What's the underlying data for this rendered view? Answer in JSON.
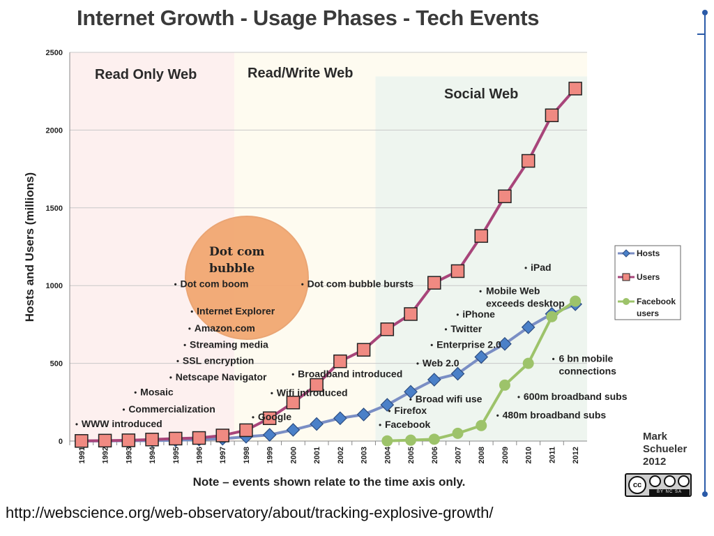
{
  "title": "Internet Growth - Usage Phases - Tech Events",
  "source_url": "http://webscience.org/web-observatory/about/tracking-explosive-growth/",
  "credit": {
    "line1": "Mark",
    "line2": "Schueler",
    "line3": "2012"
  },
  "license_text": "BY  NC  SA",
  "license_icon": "cc",
  "colors": {
    "hosts": "#7a8ec4",
    "hosts_marker": "#4a80c8",
    "users": "#a8457a",
    "users_marker": "#f08a82",
    "facebook": "#9dc36a",
    "read_only_bg": "#fdf0ef",
    "read_write_bg": "#fefbf0",
    "social_bg": "#eef5ef",
    "bubble": "#f2a872",
    "timeline": "#2a5aa8"
  },
  "chart_data": {
    "type": "line",
    "x": [
      1991,
      1992,
      1993,
      1994,
      1995,
      1996,
      1997,
      1998,
      1999,
      2000,
      2001,
      2002,
      2003,
      2004,
      2005,
      2006,
      2007,
      2008,
      2009,
      2010,
      2011,
      2012
    ],
    "x_tick_labels": [
      "1991",
      "1992",
      "1993",
      "1994",
      "1995",
      "1996",
      "1997",
      "1998",
      "1999",
      "2000",
      "2001",
      "2002",
      "2003",
      "2004",
      "2005",
      "2006",
      "2007",
      "2008",
      "2009",
      "2010",
      "2011",
      "2012"
    ],
    "ylabel": "Hosts and Users (millions)",
    "xlabel": "Note – events shown relate to the time axis only.",
    "ylim": [
      0,
      2500
    ],
    "y_ticks": [
      0,
      500,
      1000,
      1500,
      2000,
      2500
    ],
    "y_tick_labels": [
      "0",
      "500",
      "1000",
      "1500",
      "2000",
      "2500"
    ],
    "grid": true,
    "legend_position": "right",
    "series": [
      {
        "name": "Hosts",
        "marker": "diamond",
        "x": [
          1991,
          1992,
          1993,
          1994,
          1995,
          1996,
          1997,
          1998,
          1999,
          2000,
          2001,
          2002,
          2003,
          2004,
          2005,
          2006,
          2007,
          2008,
          2009,
          2010,
          2011,
          2012
        ],
        "values": [
          0.4,
          1,
          2,
          3,
          5,
          10,
          15,
          28,
          40,
          72,
          110,
          147,
          171,
          233,
          317,
          395,
          433,
          541,
          625,
          732,
          818,
          880
        ]
      },
      {
        "name": "Users",
        "marker": "square",
        "x": [
          1991,
          1992,
          1993,
          1994,
          1995,
          1996,
          1997,
          1998,
          1999,
          2000,
          2001,
          2002,
          2003,
          2004,
          2005,
          2006,
          2007,
          2008,
          2009,
          2010,
          2011,
          2012
        ],
        "values": [
          1,
          3,
          5,
          10,
          16,
          20,
          36,
          70,
          147,
          248,
          361,
          513,
          587,
          719,
          817,
          1018,
          1093,
          1319,
          1574,
          1802,
          2095,
          2267
        ]
      },
      {
        "name": "Facebook users",
        "marker": "circle",
        "x": [
          2004,
          2005,
          2006,
          2007,
          2008,
          2009,
          2010,
          2011,
          2012
        ],
        "values": [
          1,
          6,
          12,
          50,
          100,
          360,
          500,
          800,
          900
        ]
      }
    ],
    "legend": [
      "Hosts",
      "Users",
      "Facebook users"
    ],
    "phases": [
      {
        "label": "Read Only Web",
        "from": 1990.5,
        "to": 1997.5
      },
      {
        "label": "Read/Write Web",
        "from": 1997.5,
        "to": 2012.5
      },
      {
        "label": "Social Web",
        "from": 2003.5,
        "to": 2012.5
      }
    ],
    "bubble_label_line1": "Dot com",
    "bubble_label_line2": "bubble",
    "annotations": [
      {
        "text": "WWW introduced",
        "x": 1991,
        "y": 90
      },
      {
        "text": "Commercialization",
        "x": 1993,
        "y": 185
      },
      {
        "text": "Mosaic",
        "x": 1993.5,
        "y": 295
      },
      {
        "text": "Netscape Navigator",
        "x": 1995,
        "y": 390
      },
      {
        "text": "SSL encryption",
        "x": 1995.3,
        "y": 495
      },
      {
        "text": "Streaming media",
        "x": 1995.6,
        "y": 600
      },
      {
        "text": "Amazon.com",
        "x": 1995.8,
        "y": 705
      },
      {
        "text": "Internet Explorer",
        "x": 1995.9,
        "y": 815
      },
      {
        "text": "Dot com boom",
        "x": 1995.2,
        "y": 990
      },
      {
        "text": "Google",
        "x": 1998.5,
        "y": 135
      },
      {
        "text": "Wifi introduced",
        "x": 1999.3,
        "y": 290
      },
      {
        "text": "Broadband introduced",
        "x": 2000.2,
        "y": 410
      },
      {
        "text": "Dot com bubble bursts",
        "x": 2000.6,
        "y": 990
      },
      {
        "text": "Facebook",
        "x": 2003.9,
        "y": 85
      },
      {
        "text": "Firefox",
        "x": 2004.3,
        "y": 175
      },
      {
        "text": "Broad wifi use",
        "x": 2005.2,
        "y": 250
      },
      {
        "text": "Web 2.0",
        "x": 2005.5,
        "y": 480
      },
      {
        "text": "Enterprise 2.0",
        "x": 2006.1,
        "y": 600
      },
      {
        "text": "Twitter",
        "x": 2006.7,
        "y": 700
      },
      {
        "text": "iPhone",
        "x": 2007.2,
        "y": 795
      },
      {
        "text": "Mobile Web exceeds desktop",
        "x": 2008.2,
        "y": 945
      },
      {
        "text": "iPad",
        "x": 2010.1,
        "y": 1095
      },
      {
        "text": "6 bn mobile connections",
        "x": 2011.3,
        "y": 510
      },
      {
        "text": "600m broadband subs",
        "x": 2009.8,
        "y": 265
      },
      {
        "text": "480m broadband subs",
        "x": 2008.9,
        "y": 145
      }
    ]
  }
}
